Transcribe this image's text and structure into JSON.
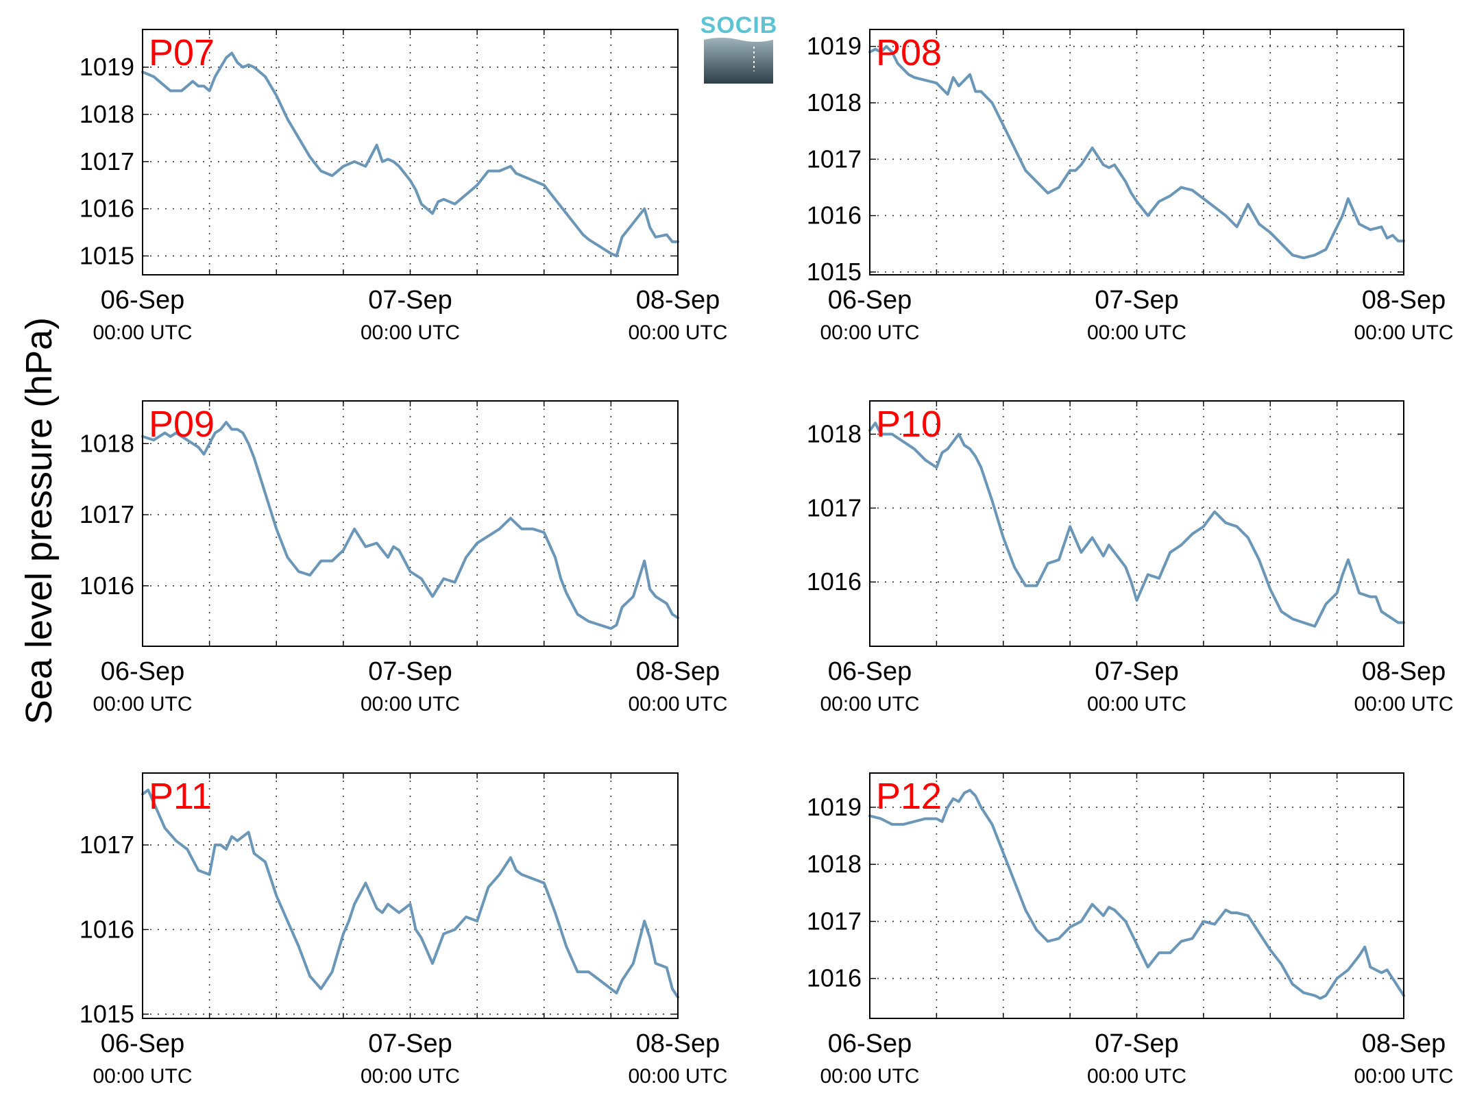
{
  "figure": {
    "ylabel": "Sea level pressure (hPa)",
    "logo_text": "SOCIB",
    "line_color": "#6a96b8",
    "label_color": "#ff0000"
  },
  "chart_data": [
    {
      "type": "line",
      "label": "P07",
      "xlim": [
        0,
        48
      ],
      "ylim": [
        1014.6,
        1019.8
      ],
      "yticks": [
        1015,
        1016,
        1017,
        1018,
        1019
      ],
      "xticks": [
        {
          "x": 0,
          "label": "06-Sep",
          "sub": "00:00 UTC"
        },
        {
          "x": 24,
          "label": "07-Sep",
          "sub": "00:00 UTC"
        },
        {
          "x": 48,
          "label": "08-Sep",
          "sub": "00:00 UTC"
        }
      ],
      "grid": true,
      "x": [
        0,
        1,
        1.5,
        2.5,
        3.5,
        4,
        4.5,
        5,
        5.5,
        6,
        6.5,
        7,
        7.5,
        8,
        8.5,
        9,
        9.5,
        10,
        11,
        12,
        13,
        14,
        15,
        16,
        17,
        18,
        19,
        20,
        21,
        21.5,
        22,
        22.5,
        23,
        23.5,
        24,
        24.5,
        25,
        26,
        26.5,
        27,
        28,
        29,
        30,
        31,
        32,
        33,
        33.5,
        34,
        35,
        36,
        37,
        38,
        39,
        39.5,
        40,
        41,
        42,
        42.5,
        43,
        43.5,
        44,
        45,
        45.5,
        46,
        47,
        47.5,
        48
      ],
      "y": [
        1018.9,
        1018.8,
        1018.7,
        1018.5,
        1018.5,
        1018.6,
        1018.7,
        1018.6,
        1018.6,
        1018.5,
        1018.8,
        1019.0,
        1019.2,
        1019.3,
        1019.1,
        1019.0,
        1019.05,
        1019.0,
        1018.8,
        1018.4,
        1017.9,
        1017.5,
        1017.1,
        1016.8,
        1016.7,
        1016.9,
        1017.0,
        1016.9,
        1017.35,
        1017.0,
        1017.05,
        1017.0,
        1016.9,
        1016.75,
        1016.6,
        1016.4,
        1016.1,
        1015.9,
        1016.15,
        1016.2,
        1016.1,
        1016.3,
        1016.5,
        1016.8,
        1016.8,
        1016.9,
        1016.75,
        1016.7,
        1016.6,
        1016.5,
        1016.2,
        1015.9,
        1015.6,
        1015.45,
        1015.35,
        1015.2,
        1015.05,
        1015.0,
        1015.4,
        1015.55,
        1015.7,
        1016.0,
        1015.6,
        1015.4,
        1015.45,
        1015.3,
        1015.3
      ]
    },
    {
      "type": "line",
      "label": "P08",
      "xlim": [
        0,
        48
      ],
      "ylim": [
        1014.95,
        1019.3
      ],
      "yticks": [
        1015,
        1016,
        1017,
        1018,
        1019
      ],
      "xticks": [
        {
          "x": 0,
          "label": "06-Sep",
          "sub": "00:00 UTC"
        },
        {
          "x": 24,
          "label": "07-Sep",
          "sub": "00:00 UTC"
        },
        {
          "x": 48,
          "label": "08-Sep",
          "sub": "00:00 UTC"
        }
      ],
      "grid": true,
      "x": [
        0,
        0.5,
        1,
        1.5,
        2,
        2.5,
        3,
        3.5,
        4,
        5,
        6,
        7,
        7.5,
        8,
        8.5,
        9,
        9.5,
        10,
        10.5,
        11,
        12,
        13,
        14,
        15,
        16,
        17,
        18,
        18.5,
        19,
        20,
        21,
        21.5,
        22,
        22.5,
        23,
        23.5,
        24,
        25,
        26,
        27,
        28,
        29,
        30,
        31,
        32,
        33,
        34,
        35,
        36,
        37,
        38,
        39,
        40,
        41,
        42,
        42.5,
        43,
        44,
        45,
        46,
        46.5,
        47,
        47.5,
        48
      ],
      "y": [
        1018.9,
        1018.95,
        1018.9,
        1019.0,
        1018.9,
        1018.7,
        1018.6,
        1018.5,
        1018.45,
        1018.4,
        1018.35,
        1018.15,
        1018.45,
        1018.3,
        1018.4,
        1018.5,
        1018.2,
        1018.2,
        1018.1,
        1018.0,
        1017.6,
        1017.2,
        1016.8,
        1016.6,
        1016.4,
        1016.5,
        1016.8,
        1016.8,
        1016.9,
        1017.2,
        1016.9,
        1016.85,
        1016.9,
        1016.75,
        1016.6,
        1016.4,
        1016.25,
        1016.0,
        1016.25,
        1016.35,
        1016.5,
        1016.45,
        1016.3,
        1016.15,
        1016.0,
        1015.8,
        1016.2,
        1015.85,
        1015.7,
        1015.5,
        1015.3,
        1015.25,
        1015.3,
        1015.4,
        1015.8,
        1016.0,
        1016.3,
        1015.85,
        1015.75,
        1015.8,
        1015.6,
        1015.65,
        1015.55,
        1015.55
      ]
    },
    {
      "type": "line",
      "label": "P09",
      "xlim": [
        0,
        48
      ],
      "ylim": [
        1015.15,
        1018.6
      ],
      "yticks": [
        1016,
        1017,
        1018
      ],
      "xticks": [
        {
          "x": 0,
          "label": "06-Sep",
          "sub": "00:00 UTC"
        },
        {
          "x": 24,
          "label": "07-Sep",
          "sub": "00:00 UTC"
        },
        {
          "x": 48,
          "label": "08-Sep",
          "sub": "00:00 UTC"
        }
      ],
      "grid": true,
      "x": [
        0,
        1,
        2,
        2.5,
        3,
        4,
        4.5,
        5,
        5.5,
        6,
        6.5,
        7,
        7.5,
        8,
        8.5,
        9,
        9.5,
        10,
        11,
        12,
        13,
        14,
        15,
        16,
        17,
        18,
        19,
        20,
        21,
        22,
        22.5,
        23,
        23.5,
        24,
        25,
        26,
        27,
        28,
        29,
        30,
        31,
        32,
        33,
        34,
        35,
        36,
        37,
        37.5,
        38,
        39,
        40,
        41,
        42,
        42.5,
        43,
        44,
        45,
        45.5,
        46,
        47,
        47.5,
        48
      ],
      "y": [
        1018.1,
        1018.05,
        1018.15,
        1018.1,
        1018.15,
        1018.05,
        1018.0,
        1017.95,
        1017.85,
        1018.0,
        1018.15,
        1018.2,
        1018.3,
        1018.2,
        1018.2,
        1018.15,
        1018.0,
        1017.8,
        1017.3,
        1016.8,
        1016.4,
        1016.2,
        1016.15,
        1016.35,
        1016.35,
        1016.5,
        1016.8,
        1016.55,
        1016.6,
        1016.4,
        1016.55,
        1016.5,
        1016.35,
        1016.2,
        1016.1,
        1015.85,
        1016.1,
        1016.05,
        1016.4,
        1016.6,
        1016.7,
        1016.8,
        1016.95,
        1016.8,
        1016.8,
        1016.75,
        1016.4,
        1016.1,
        1015.9,
        1015.6,
        1015.5,
        1015.45,
        1015.4,
        1015.45,
        1015.7,
        1015.85,
        1016.35,
        1015.95,
        1015.85,
        1015.75,
        1015.6,
        1015.55
      ]
    },
    {
      "type": "line",
      "label": "P10",
      "xlim": [
        0,
        48
      ],
      "ylim": [
        1015.13,
        1018.45
      ],
      "yticks": [
        1016,
        1017,
        1018
      ],
      "xticks": [
        {
          "x": 0,
          "label": "06-Sep",
          "sub": "00:00 UTC"
        },
        {
          "x": 24,
          "label": "07-Sep",
          "sub": "00:00 UTC"
        },
        {
          "x": 48,
          "label": "08-Sep",
          "sub": "00:00 UTC"
        }
      ],
      "grid": true,
      "x": [
        0,
        0.5,
        1,
        2,
        3,
        4,
        5,
        6,
        6.5,
        7,
        7.5,
        8,
        8.5,
        9,
        9.5,
        10,
        11,
        12,
        13,
        14,
        15,
        16,
        17,
        18,
        19,
        20,
        21,
        21.5,
        22,
        22.5,
        23,
        23.5,
        24,
        25,
        26,
        27,
        28,
        29,
        30,
        31,
        32,
        33,
        34,
        35,
        36,
        37,
        38,
        39,
        40,
        41,
        42,
        42.5,
        43,
        44,
        45,
        45.5,
        46,
        47,
        47.5,
        48
      ],
      "y": [
        1018.05,
        1018.15,
        1018.0,
        1018.0,
        1017.9,
        1017.8,
        1017.65,
        1017.55,
        1017.75,
        1017.8,
        1017.9,
        1018.0,
        1017.85,
        1017.8,
        1017.7,
        1017.55,
        1017.1,
        1016.6,
        1016.2,
        1015.95,
        1015.95,
        1016.25,
        1016.3,
        1016.75,
        1016.4,
        1016.6,
        1016.35,
        1016.5,
        1016.4,
        1016.3,
        1016.2,
        1016.0,
        1015.75,
        1016.1,
        1016.05,
        1016.4,
        1016.5,
        1016.65,
        1016.75,
        1016.95,
        1016.8,
        1016.75,
        1016.6,
        1016.3,
        1015.9,
        1015.6,
        1015.5,
        1015.45,
        1015.4,
        1015.7,
        1015.85,
        1016.1,
        1016.3,
        1015.85,
        1015.8,
        1015.8,
        1015.6,
        1015.5,
        1015.45,
        1015.45
      ]
    },
    {
      "type": "line",
      "label": "P11",
      "xlim": [
        0,
        48
      ],
      "ylim": [
        1014.95,
        1017.85
      ],
      "yticks": [
        1015,
        1016,
        1017
      ],
      "xticks": [
        {
          "x": 0,
          "label": "06-Sep",
          "sub": "00:00 UTC"
        },
        {
          "x": 24,
          "label": "07-Sep",
          "sub": "00:00 UTC"
        },
        {
          "x": 48,
          "label": "08-Sep",
          "sub": "00:00 UTC"
        }
      ],
      "grid": true,
      "x": [
        0,
        0.5,
        1,
        2,
        3,
        4,
        5,
        6,
        6.5,
        7,
        7.5,
        8,
        8.5,
        9,
        9.5,
        10,
        11,
        12,
        13,
        14,
        15,
        16,
        17,
        18,
        18.5,
        19,
        20,
        21,
        21.5,
        22,
        23,
        24,
        24.5,
        25,
        26,
        27,
        28,
        29,
        30,
        31,
        32,
        33,
        33.5,
        34,
        35,
        36,
        37,
        38,
        39,
        40,
        41,
        42,
        42.5,
        43,
        44,
        45,
        45.5,
        46,
        47,
        47.5,
        48
      ],
      "y": [
        1017.6,
        1017.65,
        1017.5,
        1017.2,
        1017.05,
        1016.95,
        1016.7,
        1016.65,
        1017.0,
        1017.0,
        1016.95,
        1017.1,
        1017.05,
        1017.1,
        1017.15,
        1016.9,
        1016.8,
        1016.4,
        1016.1,
        1015.8,
        1015.45,
        1015.3,
        1015.5,
        1015.95,
        1016.1,
        1016.3,
        1016.55,
        1016.25,
        1016.2,
        1016.3,
        1016.2,
        1016.3,
        1016.0,
        1015.9,
        1015.6,
        1015.95,
        1016.0,
        1016.15,
        1016.1,
        1016.5,
        1016.65,
        1016.85,
        1016.7,
        1016.65,
        1016.6,
        1016.55,
        1016.2,
        1015.8,
        1015.5,
        1015.5,
        1015.4,
        1015.3,
        1015.25,
        1015.4,
        1015.6,
        1016.1,
        1015.9,
        1015.6,
        1015.55,
        1015.3,
        1015.2
      ]
    },
    {
      "type": "line",
      "label": "P12",
      "xlim": [
        0,
        48
      ],
      "ylim": [
        1015.3,
        1019.6
      ],
      "yticks": [
        1016,
        1017,
        1018,
        1019
      ],
      "xticks": [
        {
          "x": 0,
          "label": "06-Sep",
          "sub": "00:00 UTC"
        },
        {
          "x": 24,
          "label": "07-Sep",
          "sub": "00:00 UTC"
        },
        {
          "x": 48,
          "label": "08-Sep",
          "sub": "00:00 UTC"
        }
      ],
      "grid": true,
      "x": [
        0,
        1,
        2,
        3,
        4,
        5,
        6,
        6.5,
        7,
        7.5,
        8,
        8.5,
        9,
        9.5,
        10,
        11,
        12,
        13,
        14,
        15,
        16,
        17,
        18,
        19,
        20,
        21,
        21.5,
        22,
        22.5,
        23,
        23.5,
        24,
        25,
        26,
        27,
        28,
        29,
        30,
        31,
        32,
        32.5,
        33,
        34,
        35,
        36,
        37,
        38,
        39,
        40,
        40.5,
        41,
        42,
        43,
        44,
        44.5,
        45,
        46,
        46.5,
        47,
        47.5,
        48
      ],
      "y": [
        1018.85,
        1018.8,
        1018.7,
        1018.7,
        1018.75,
        1018.8,
        1018.8,
        1018.75,
        1019.0,
        1019.15,
        1019.1,
        1019.25,
        1019.3,
        1019.2,
        1019.0,
        1018.7,
        1018.2,
        1017.7,
        1017.2,
        1016.85,
        1016.65,
        1016.7,
        1016.9,
        1017.0,
        1017.3,
        1017.1,
        1017.25,
        1017.2,
        1017.1,
        1017.0,
        1016.8,
        1016.6,
        1016.2,
        1016.45,
        1016.45,
        1016.65,
        1016.7,
        1017.0,
        1016.95,
        1017.2,
        1017.15,
        1017.15,
        1017.1,
        1016.8,
        1016.5,
        1016.25,
        1015.9,
        1015.75,
        1015.7,
        1015.65,
        1015.7,
        1016.0,
        1016.15,
        1016.4,
        1016.55,
        1016.2,
        1016.1,
        1016.15,
        1016.0,
        1015.85,
        1015.7
      ]
    }
  ]
}
